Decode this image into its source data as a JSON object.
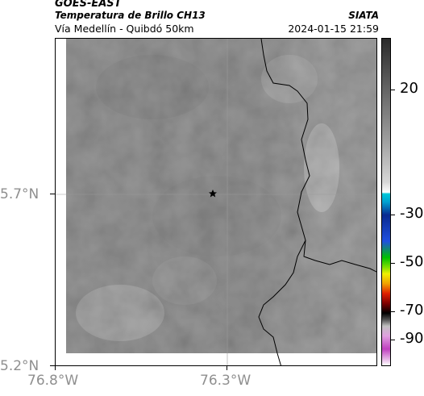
{
  "header": {
    "satellite": "GOES-EAST",
    "product": "Temperatura de Brillo CH13",
    "region": "Vía Medellín - Quibdó 50km",
    "organization": "SIATA",
    "timestamp": "2024-01-15 21:59"
  },
  "map": {
    "marker_icon": "star-icon",
    "lat_ticks": [
      "5.7°N",
      "5.2°N"
    ],
    "lon_ticks": [
      "76.8°W",
      "76.3°W"
    ]
  },
  "colorbar": {
    "labels": [
      "20",
      "-30",
      "-50",
      "-70",
      "-90"
    ],
    "colors": {
      "dark_top": "#2a2a2a",
      "light_gray": "#d8d8d8",
      "cyan": "#00c8d8",
      "blue": "#0a2a90",
      "green": "#00c000",
      "yellow": "#f0f000",
      "red": "#e02000",
      "black": "#000000",
      "magenta": "#c040c0"
    }
  }
}
